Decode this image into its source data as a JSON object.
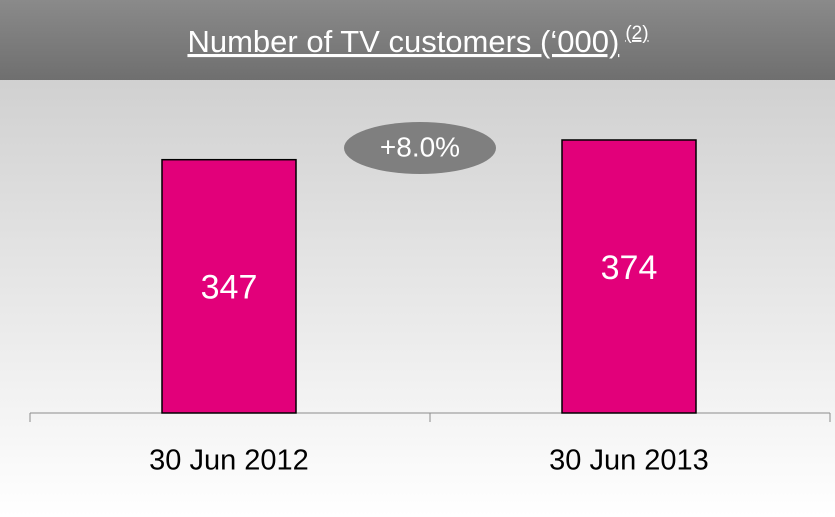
{
  "chart_data": {
    "type": "bar",
    "title": "Number of TV customers (‘000)",
    "title_superscript": "(2)",
    "categories": [
      "30 Jun 2012",
      "30 Jun 2013"
    ],
    "values": [
      347,
      374
    ],
    "color": "#e2007a",
    "annotations": [
      "+8.0%"
    ]
  }
}
